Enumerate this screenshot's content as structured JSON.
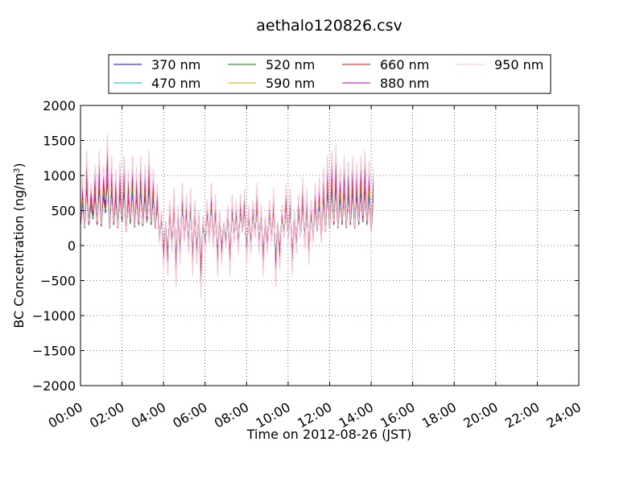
{
  "chart_data": {
    "type": "line",
    "title": "aethalo120826.csv",
    "xlabel": "Time on 2012-08-26 (JST)",
    "ylabel_main": "BC Concentration (ng/m",
    "ylabel_sup": "3",
    "ylabel_tail": ")",
    "xlim": [
      0,
      24
    ],
    "ylim": [
      -2000,
      2000
    ],
    "grid": true,
    "legend_position": "top",
    "x_ticks": [
      0,
      2,
      4,
      6,
      8,
      10,
      12,
      14,
      16,
      18,
      20,
      22,
      24
    ],
    "x_tick_labels": [
      "00:00",
      "02:00",
      "04:00",
      "06:00",
      "08:00",
      "10:00",
      "12:00",
      "14:00",
      "16:00",
      "18:00",
      "20:00",
      "22:00",
      "24:00"
    ],
    "y_ticks": [
      -2000,
      -1500,
      -1000,
      -500,
      0,
      500,
      1000,
      1500,
      2000
    ],
    "y_tick_labels": [
      "−2000",
      "−1500",
      "−1000",
      "−500",
      "0",
      "500",
      "1000",
      "1500",
      "2000"
    ],
    "x_start_hours": 0,
    "x_step_hours": 0.1,
    "base_profile": [
      300,
      700,
      250,
      950,
      300,
      650,
      400,
      820,
      300,
      950,
      280,
      800,
      500,
      1100,
      250,
      900,
      300,
      780,
      250,
      850,
      350,
      900,
      200,
      780,
      320,
      900,
      260,
      800,
      300,
      900,
      280,
      820,
      350,
      950,
      300,
      780,
      250,
      650,
      100,
      400,
      -150,
      300,
      -200,
      500,
      0,
      600,
      -300,
      450,
      -100,
      650,
      100,
      550,
      0,
      600,
      -200,
      500,
      -100,
      400,
      -400,
      350,
      0,
      500,
      100,
      650,
      50,
      550,
      -200,
      400,
      -100,
      300,
      50,
      450,
      -200,
      550,
      100,
      500,
      0,
      550,
      200,
      600,
      -100,
      450,
      0,
      500,
      150,
      650,
      0,
      450,
      -200,
      350,
      0,
      500,
      100,
      600,
      -300,
      300,
      -150,
      450,
      150,
      650,
      100,
      600,
      -200,
      400,
      0,
      550,
      150,
      700,
      50,
      600,
      -100,
      500,
      100,
      650,
      200,
      700,
      100,
      800,
      200,
      900,
      250,
      950,
      300,
      1000,
      250,
      800,
      300,
      900,
      250,
      850,
      300,
      900,
      250,
      850,
      300,
      900,
      350,
      950,
      300,
      850,
      200,
      800
    ],
    "series": [
      {
        "name": "370 nm",
        "color": "#0000ff",
        "gain": 0.85,
        "offset": 40
      },
      {
        "name": "470 nm",
        "color": "#00bfbf",
        "gain": 0.95,
        "offset": 20
      },
      {
        "name": "520 nm",
        "color": "#008000",
        "gain": 1.0,
        "offset": 0
      },
      {
        "name": "590 nm",
        "color": "#bfbf00",
        "gain": 1.05,
        "offset": -10
      },
      {
        "name": "660 nm",
        "color": "#ff0000",
        "gain": 1.15,
        "offset": -30
      },
      {
        "name": "880 nm",
        "color": "#bf00bf",
        "gain": 1.3,
        "offset": -60
      },
      {
        "name": "950 nm",
        "color": "#ffc0cb",
        "gain": 1.55,
        "offset": -120
      }
    ]
  }
}
